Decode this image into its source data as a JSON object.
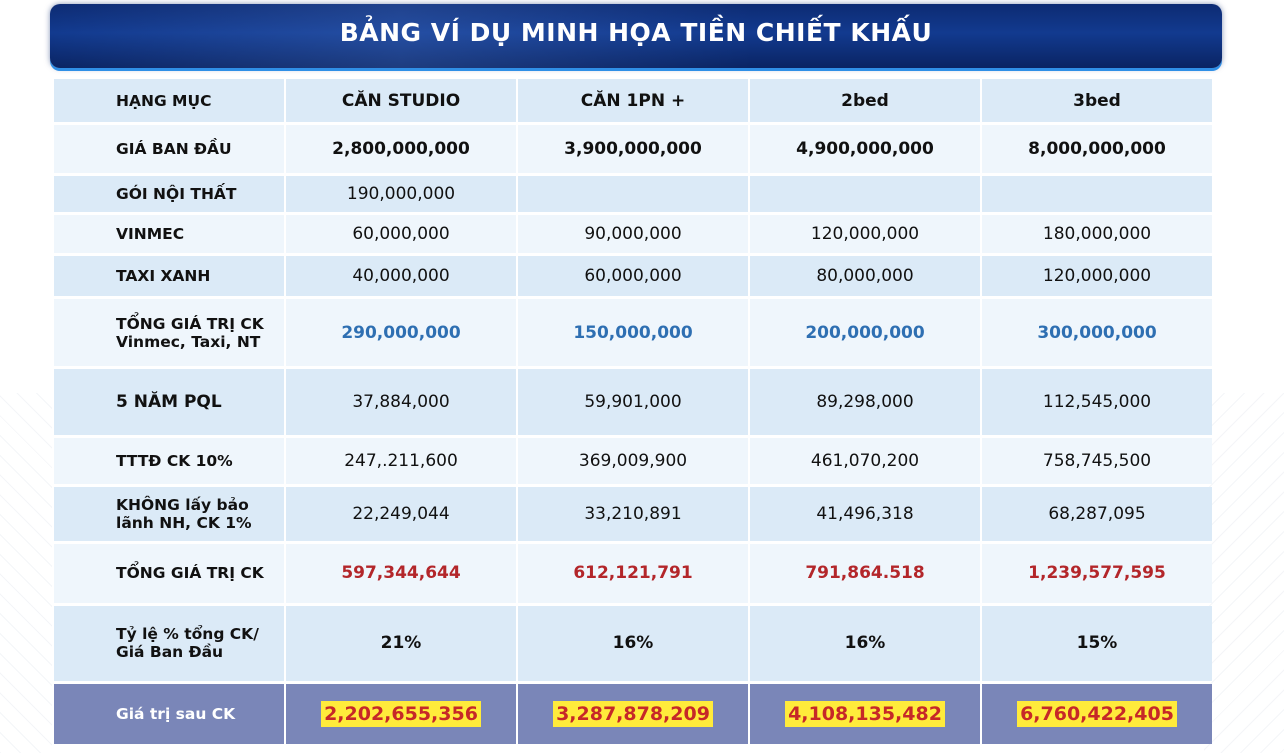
{
  "title": "BẢNG VÍ DỤ MINH HỌA TIỀN CHIẾT KHẤU",
  "header": {
    "label": "HẠNG MỤC",
    "columns": [
      "CĂN STUDIO",
      "CĂN 1PN +",
      "2bed",
      "3bed"
    ]
  },
  "rows": {
    "gia_ban_dau": {
      "label": "GIÁ BAN ĐẦU",
      "values": [
        "2,800,000,000",
        "3,900,000,000",
        "4,900,000,000",
        "8,000,000,000"
      ]
    },
    "goi_noi_that": {
      "label": "GÓI NỘI THẤT",
      "values": [
        "190,000,000",
        "",
        "",
        ""
      ]
    },
    "vinmec": {
      "label": "VINMEC",
      "values": [
        "60,000,000",
        "90,000,000",
        "120,000,000",
        "180,000,000"
      ]
    },
    "taxi_xanh": {
      "label": "TAXI XANH",
      "values": [
        "40,000,000",
        "60,000,000",
        "80,000,000",
        "120,000,000"
      ]
    },
    "tong_ck_1": {
      "label_line1": "TỔNG GIÁ TRỊ CK",
      "label_line2": "Vinmec, Taxi, NT",
      "values": [
        "290,000,000",
        "150,000,000",
        "200,000,000",
        "300,000,000"
      ]
    },
    "pql": {
      "label": "5 NĂM PQL",
      "values": [
        "37,884,000",
        "59,901,000",
        "89,298,000",
        "112,545,000"
      ]
    },
    "tttd": {
      "label": "TTTĐ CK 10%",
      "values": [
        "247,.211,600",
        "369,009,900",
        "461,070,200",
        "758,745,500"
      ]
    },
    "khong_bao_lanh": {
      "label_line1": "KHÔNG lấy bảo",
      "label_line2": "lãnh NH, CK 1%",
      "values": [
        "22,249,044",
        "33,210,891",
        "41,496,318",
        "68,287,095"
      ]
    },
    "tong_ck": {
      "label": "TỔNG GIÁ TRỊ CK",
      "values": [
        "597,344,644",
        "612,121,791",
        "791,864.518",
        "1,239,577,595"
      ]
    },
    "ty_le": {
      "label_line1": "Tỷ lệ % tổng CK/",
      "label_line2": "Giá Ban Đầu",
      "values": [
        "21%",
        "16%",
        "16%",
        "15%"
      ]
    },
    "sau_ck": {
      "label": "Giá trị sau CK",
      "values": [
        "2,202,655,356",
        "3,287,878,209",
        "4,108,135,482",
        "6,760,422,405"
      ]
    }
  },
  "colors": {
    "banner": "#123a8f",
    "row_odd": "#dbeaf7",
    "row_even": "#eff6fc",
    "blue_text": "#2e6fb2",
    "red_text": "#b3262a",
    "final_row": "#7a86b8",
    "highlight": "#ffeb3b"
  }
}
